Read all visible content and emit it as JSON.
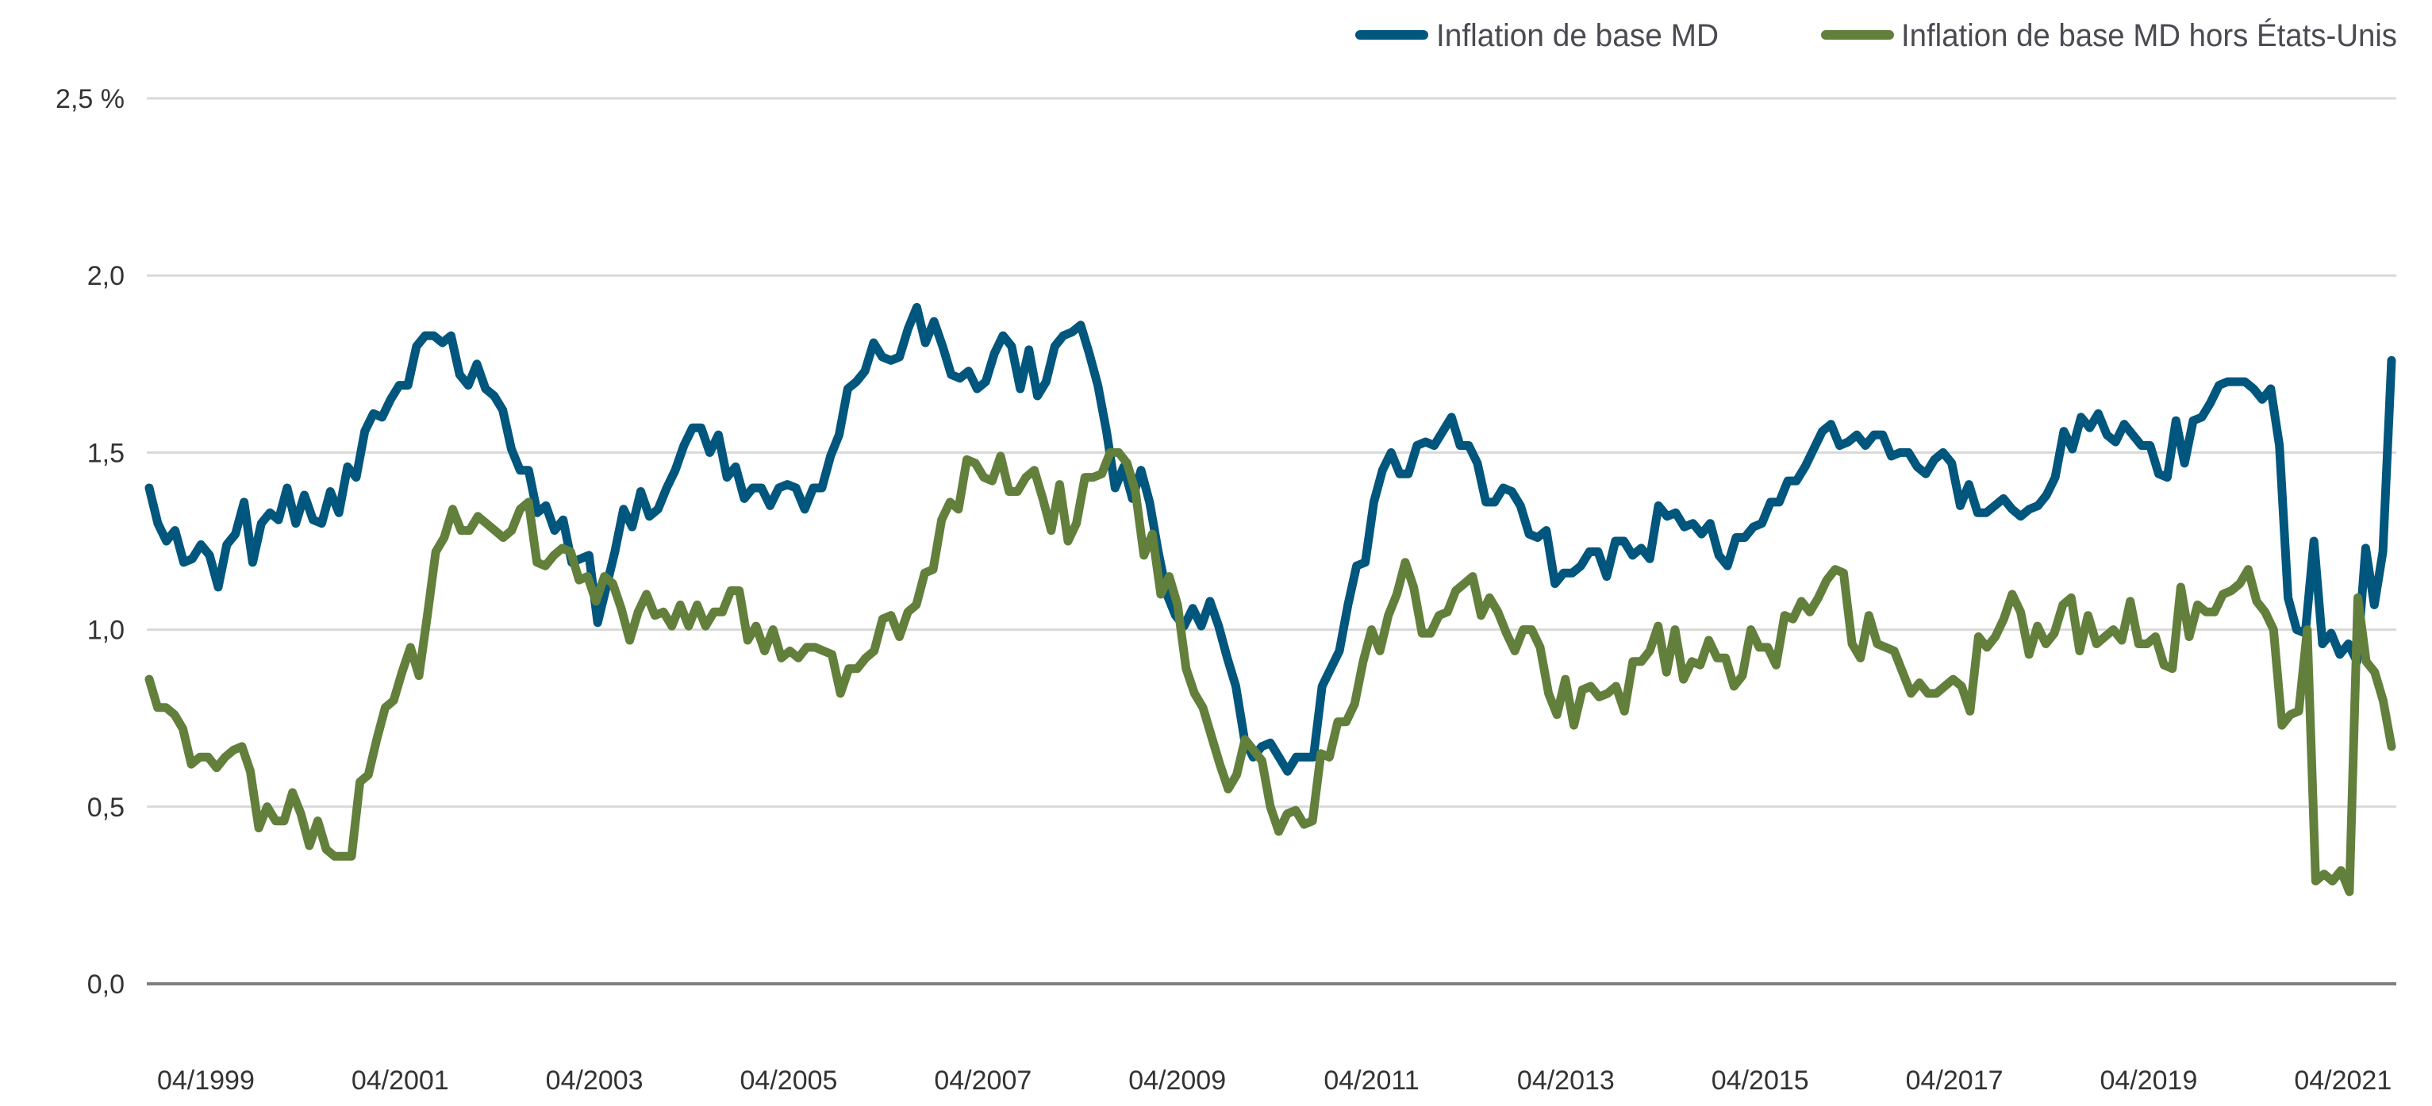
{
  "chart_data": {
    "type": "line",
    "title": "",
    "xlabel": "",
    "ylabel": "",
    "ylim": [
      0,
      2.5
    ],
    "y_ticks": [
      "0,0",
      "0,5",
      "1,0",
      "1,5",
      "2,0",
      "2,5 %"
    ],
    "y_tick_values": [
      0,
      0.5,
      1.0,
      1.5,
      2.0,
      2.5
    ],
    "x_ticks": [
      "04/1999",
      "04/2001",
      "04/2003",
      "04/2005",
      "04/2007",
      "04/2009",
      "04/2011",
      "04/2013",
      "04/2015",
      "04/2017",
      "04/2019",
      "04/2021"
    ],
    "x_start": "09/1998",
    "x_end": "10/2021",
    "frequency": "monthly",
    "grid": true,
    "legend_position": "top-right",
    "series": [
      {
        "name": "Inflation de base MD",
        "color": "#00567d",
        "values": [
          1.4,
          1.3,
          1.25,
          1.28,
          1.19,
          1.2,
          1.24,
          1.21,
          1.12,
          1.24,
          1.27,
          1.36,
          1.19,
          1.3,
          1.33,
          1.31,
          1.4,
          1.3,
          1.38,
          1.31,
          1.3,
          1.39,
          1.33,
          1.46,
          1.43,
          1.56,
          1.61,
          1.6,
          1.65,
          1.69,
          1.69,
          1.8,
          1.83,
          1.83,
          1.81,
          1.83,
          1.72,
          1.69,
          1.75,
          1.68,
          1.66,
          1.62,
          1.51,
          1.45,
          1.45,
          1.33,
          1.35,
          1.28,
          1.31,
          1.19,
          1.2,
          1.21,
          1.02,
          1.12,
          1.22,
          1.34,
          1.29,
          1.39,
          1.32,
          1.34,
          1.4,
          1.45,
          1.52,
          1.57,
          1.57,
          1.5,
          1.55,
          1.43,
          1.46,
          1.37,
          1.4,
          1.4,
          1.35,
          1.4,
          1.41,
          1.4,
          1.34,
          1.4,
          1.4,
          1.49,
          1.55,
          1.68,
          1.7,
          1.73,
          1.81,
          1.77,
          1.76,
          1.77,
          1.85,
          1.91,
          1.81,
          1.87,
          1.8,
          1.72,
          1.71,
          1.73,
          1.68,
          1.7,
          1.78,
          1.83,
          1.8,
          1.68,
          1.79,
          1.66,
          1.7,
          1.8,
          1.83,
          1.84,
          1.86,
          1.78,
          1.69,
          1.56,
          1.4,
          1.46,
          1.37,
          1.45,
          1.36,
          1.22,
          1.1,
          1.04,
          1.01,
          1.06,
          1.01,
          1.08,
          1.01,
          0.92,
          0.84,
          0.69,
          0.64,
          0.67,
          0.68,
          0.64,
          0.6,
          0.64,
          0.64,
          0.64,
          0.84,
          0.89,
          0.94,
          1.07,
          1.18,
          1.19,
          1.36,
          1.45,
          1.5,
          1.44,
          1.44,
          1.52,
          1.53,
          1.52,
          1.56,
          1.6,
          1.52,
          1.52,
          1.47,
          1.36,
          1.36,
          1.4,
          1.39,
          1.35,
          1.27,
          1.26,
          1.28,
          1.13,
          1.16,
          1.16,
          1.18,
          1.22,
          1.22,
          1.15,
          1.25,
          1.25,
          1.21,
          1.23,
          1.2,
          1.35,
          1.32,
          1.33,
          1.29,
          1.3,
          1.27,
          1.3,
          1.21,
          1.18,
          1.26,
          1.26,
          1.29,
          1.3,
          1.36,
          1.36,
          1.42,
          1.42,
          1.46,
          1.51,
          1.56,
          1.58,
          1.52,
          1.53,
          1.55,
          1.52,
          1.55,
          1.55,
          1.49,
          1.5,
          1.5,
          1.46,
          1.44,
          1.48,
          1.5,
          1.47,
          1.35,
          1.41,
          1.33,
          1.33,
          1.35,
          1.37,
          1.34,
          1.32,
          1.34,
          1.35,
          1.38,
          1.43,
          1.56,
          1.51,
          1.6,
          1.57,
          1.61,
          1.55,
          1.53,
          1.58,
          1.55,
          1.52,
          1.52,
          1.44,
          1.43,
          1.59,
          1.47,
          1.59,
          1.6,
          1.64,
          1.69,
          1.7,
          1.7,
          1.7,
          1.68,
          1.65,
          1.68,
          1.52,
          1.09,
          1.0,
          0.99,
          1.25,
          0.96,
          0.99,
          0.93,
          0.96,
          0.91,
          1.23,
          1.07,
          1.22,
          1.76
        ]
      },
      {
        "name": "Inflation de base MD hors États-Unis",
        "color": "#627f3b",
        "values": [
          0.86,
          0.78,
          0.78,
          0.76,
          0.72,
          0.62,
          0.64,
          0.64,
          0.61,
          0.64,
          0.66,
          0.67,
          0.6,
          0.44,
          0.5,
          0.46,
          0.46,
          0.54,
          0.48,
          0.39,
          0.46,
          0.38,
          0.36,
          0.36,
          0.36,
          0.57,
          0.59,
          0.69,
          0.78,
          0.8,
          0.88,
          0.95,
          0.87,
          1.04,
          1.22,
          1.26,
          1.34,
          1.28,
          1.28,
          1.32,
          1.3,
          1.28,
          1.26,
          1.28,
          1.34,
          1.36,
          1.19,
          1.18,
          1.21,
          1.23,
          1.22,
          1.14,
          1.15,
          1.08,
          1.15,
          1.13,
          1.06,
          0.97,
          1.05,
          1.1,
          1.04,
          1.05,
          1.01,
          1.07,
          1.01,
          1.07,
          1.01,
          1.05,
          1.05,
          1.11,
          1.11,
          0.97,
          1.01,
          0.94,
          1.0,
          0.92,
          0.94,
          0.92,
          0.95,
          0.95,
          0.94,
          0.93,
          0.82,
          0.89,
          0.89,
          0.92,
          0.94,
          1.03,
          1.04,
          0.98,
          1.05,
          1.07,
          1.16,
          1.17,
          1.31,
          1.36,
          1.34,
          1.48,
          1.47,
          1.43,
          1.42,
          1.49,
          1.39,
          1.39,
          1.43,
          1.45,
          1.37,
          1.28,
          1.41,
          1.25,
          1.3,
          1.43,
          1.43,
          1.44,
          1.5,
          1.5,
          1.47,
          1.39,
          1.21,
          1.27,
          1.1,
          1.15,
          1.07,
          0.89,
          0.82,
          0.78,
          0.7,
          0.62,
          0.55,
          0.59,
          0.69,
          0.66,
          0.63,
          0.5,
          0.43,
          0.48,
          0.49,
          0.45,
          0.46,
          0.65,
          0.64,
          0.74,
          0.74,
          0.79,
          0.91,
          1.0,
          0.94,
          1.04,
          1.1,
          1.19,
          1.12,
          0.99,
          0.99,
          1.04,
          1.05,
          1.11,
          1.13,
          1.15,
          1.04,
          1.09,
          1.05,
          0.99,
          0.94,
          1.0,
          1.0,
          0.95,
          0.82,
          0.76,
          0.86,
          0.73,
          0.83,
          0.84,
          0.81,
          0.82,
          0.84,
          0.77,
          0.91,
          0.91,
          0.94,
          1.01,
          0.88,
          1.0,
          0.86,
          0.91,
          0.9,
          0.97,
          0.92,
          0.92,
          0.84,
          0.87,
          1.0,
          0.95,
          0.95,
          0.9,
          1.04,
          1.03,
          1.08,
          1.05,
          1.09,
          1.14,
          1.17,
          1.16,
          0.96,
          0.92,
          1.04,
          0.96,
          0.95,
          0.94,
          0.88,
          0.82,
          0.85,
          0.82,
          0.82,
          0.84,
          0.86,
          0.84,
          0.77,
          0.98,
          0.95,
          0.98,
          1.03,
          1.1,
          1.05,
          0.93,
          1.01,
          0.96,
          0.99,
          1.07,
          1.09,
          0.94,
          1.04,
          0.96,
          0.98,
          1.0,
          0.97,
          1.08,
          0.96,
          0.96,
          0.98,
          0.9,
          0.89,
          1.12,
          0.98,
          1.07,
          1.05,
          1.05,
          1.1,
          1.11,
          1.13,
          1.17,
          1.08,
          1.05,
          1.0,
          0.73,
          0.76,
          0.77,
          1.0,
          0.29,
          0.31,
          0.29,
          0.32,
          0.26,
          1.09,
          0.91,
          0.88,
          0.8,
          0.67
        ]
      }
    ]
  }
}
